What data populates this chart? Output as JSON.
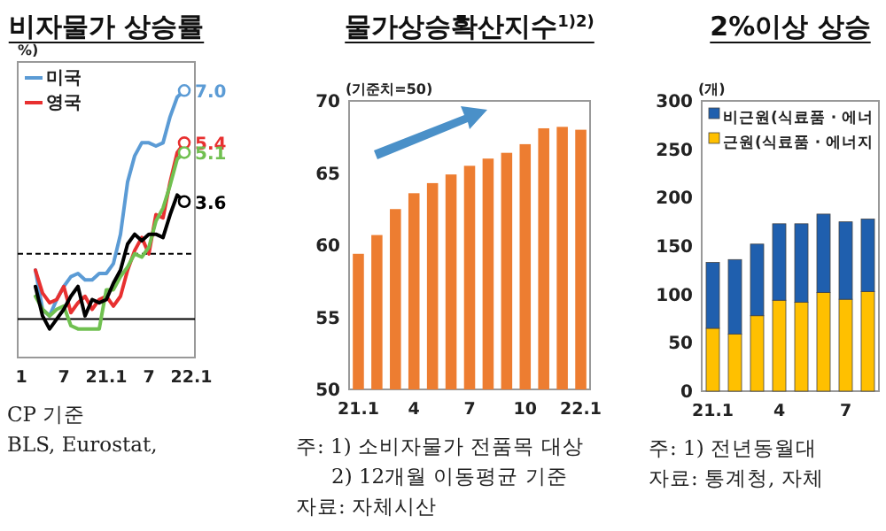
{
  "chart_data": [
    {
      "type": "line",
      "title": "비자물가 상승률",
      "ylabel": "%)",
      "categories": [
        "1",
        null,
        null,
        null,
        null,
        null,
        "7",
        null,
        null,
        null,
        null,
        null,
        "21.1",
        null,
        null,
        null,
        null,
        null,
        "7",
        null,
        null,
        null,
        null,
        null,
        "22.1"
      ],
      "series": [
        {
          "name": "미국",
          "color": "#5b9bd5",
          "values": [
            null,
            null,
            1.5,
            0.3,
            0.1,
            0.6,
            1.0,
            1.3,
            1.4,
            1.2,
            1.2,
            1.4,
            1.4,
            1.7,
            2.6,
            4.2,
            5.0,
            5.4,
            5.4,
            5.3,
            5.4,
            6.2,
            6.8,
            7.0,
            null
          ],
          "value_labels": [
            null,
            null,
            null,
            null,
            null,
            null,
            null,
            null,
            null,
            null,
            null,
            null,
            null,
            null,
            null,
            null,
            null,
            null,
            null,
            null,
            null,
            null,
            null,
            "7.0",
            null
          ]
        },
        {
          "name": "영국",
          "color": "#e83030",
          "values": [
            null,
            null,
            1.5,
            0.8,
            0.5,
            0.6,
            1.0,
            0.2,
            0.5,
            0.7,
            0.3,
            0.6,
            0.7,
            0.4,
            0.7,
            1.5,
            2.1,
            2.5,
            2.0,
            3.2,
            3.1,
            4.2,
            5.1,
            5.4,
            null
          ],
          "value_labels": [
            null,
            null,
            null,
            null,
            null,
            null,
            null,
            null,
            null,
            null,
            null,
            null,
            null,
            null,
            null,
            null,
            null,
            null,
            null,
            null,
            null,
            null,
            null,
            "5.4",
            null
          ]
        },
        {
          "color": "#70c050",
          "values": [
            null,
            null,
            0.7,
            0.3,
            0.1,
            0.3,
            0.4,
            -0.2,
            -0.3,
            -0.3,
            -0.3,
            -0.3,
            0.9,
            0.9,
            1.3,
            1.6,
            2.0,
            1.9,
            2.2,
            3.0,
            3.4,
            4.1,
            4.9,
            5.1,
            null
          ],
          "value_labels": [
            null,
            null,
            null,
            null,
            null,
            null,
            null,
            null,
            null,
            null,
            null,
            null,
            null,
            null,
            null,
            null,
            null,
            null,
            null,
            null,
            null,
            null,
            null,
            "5.1",
            null
          ]
        },
        {
          "color": "#000000",
          "values": [
            null,
            null,
            1.0,
            0.1,
            -0.3,
            0.0,
            0.3,
            0.7,
            1.0,
            0.1,
            0.6,
            0.5,
            0.6,
            1.1,
            1.5,
            2.3,
            2.6,
            2.4,
            2.6,
            2.6,
            2.5,
            3.2,
            3.8,
            3.6,
            null
          ],
          "value_labels": [
            null,
            null,
            null,
            null,
            null,
            null,
            null,
            null,
            null,
            null,
            null,
            null,
            null,
            null,
            null,
            null,
            null,
            null,
            null,
            null,
            null,
            null,
            null,
            "3.6",
            null
          ]
        }
      ],
      "ref_lines": [
        {
          "axis": "y",
          "value": 2,
          "color": "#000000",
          "line_style": "dashed"
        },
        {
          "axis": "y",
          "value": 0,
          "color": "#000000"
        }
      ],
      "legend": "top left",
      "annotations": [
        "CP 기준",
        "BLS, Eurostat,"
      ]
    },
    {
      "type": "bar",
      "title": "물가상승확산지수$^{1)2)}$",
      "ylabel": "(기준치=50)",
      "categories": [
        "21.1",
        null,
        null,
        "4",
        null,
        null,
        "7",
        null,
        null,
        "10",
        null,
        null,
        "22.1"
      ],
      "values": [
        59.4,
        60.7,
        62.5,
        63.6,
        64.3,
        64.9,
        65.5,
        66.0,
        66.4,
        67.0,
        68.1,
        68.2,
        68.0
      ],
      "color": "#ed7d31",
      "ylim": [
        50,
        70
      ],
      "yticks": [
        50,
        55,
        60,
        65,
        70
      ],
      "annotations": [
        "주: 1) 소비자물가 전품목 대상",
        "2) 12개월 이동평균 기준",
        "자료: 자체시산"
      ]
    },
    {
      "type": "bar",
      "stacked": true,
      "title": "2%이상 상승",
      "ylabel": "(개)",
      "categories": [
        "21.1",
        null,
        null,
        "4",
        null,
        null,
        "7",
        null
      ],
      "series": [
        {
          "name": "근원(식료품 · 에너지",
          "color": "#ffc000",
          "values": [
            65,
            59,
            78,
            94,
            92,
            102,
            95,
            103
          ]
        },
        {
          "name": "비근원(식료품 · 에너",
          "color": "#1f5fae",
          "values": [
            68,
            77,
            74,
            79,
            81,
            81,
            80,
            75
          ]
        }
      ],
      "ylim": [
        0,
        300
      ],
      "yticks": [
        0,
        50,
        100,
        150,
        200,
        250,
        300
      ],
      "legend": "top left",
      "annotations": [
        "주: 1) 전년동월대",
        "자료: 통계청, 자체"
      ]
    }
  ]
}
